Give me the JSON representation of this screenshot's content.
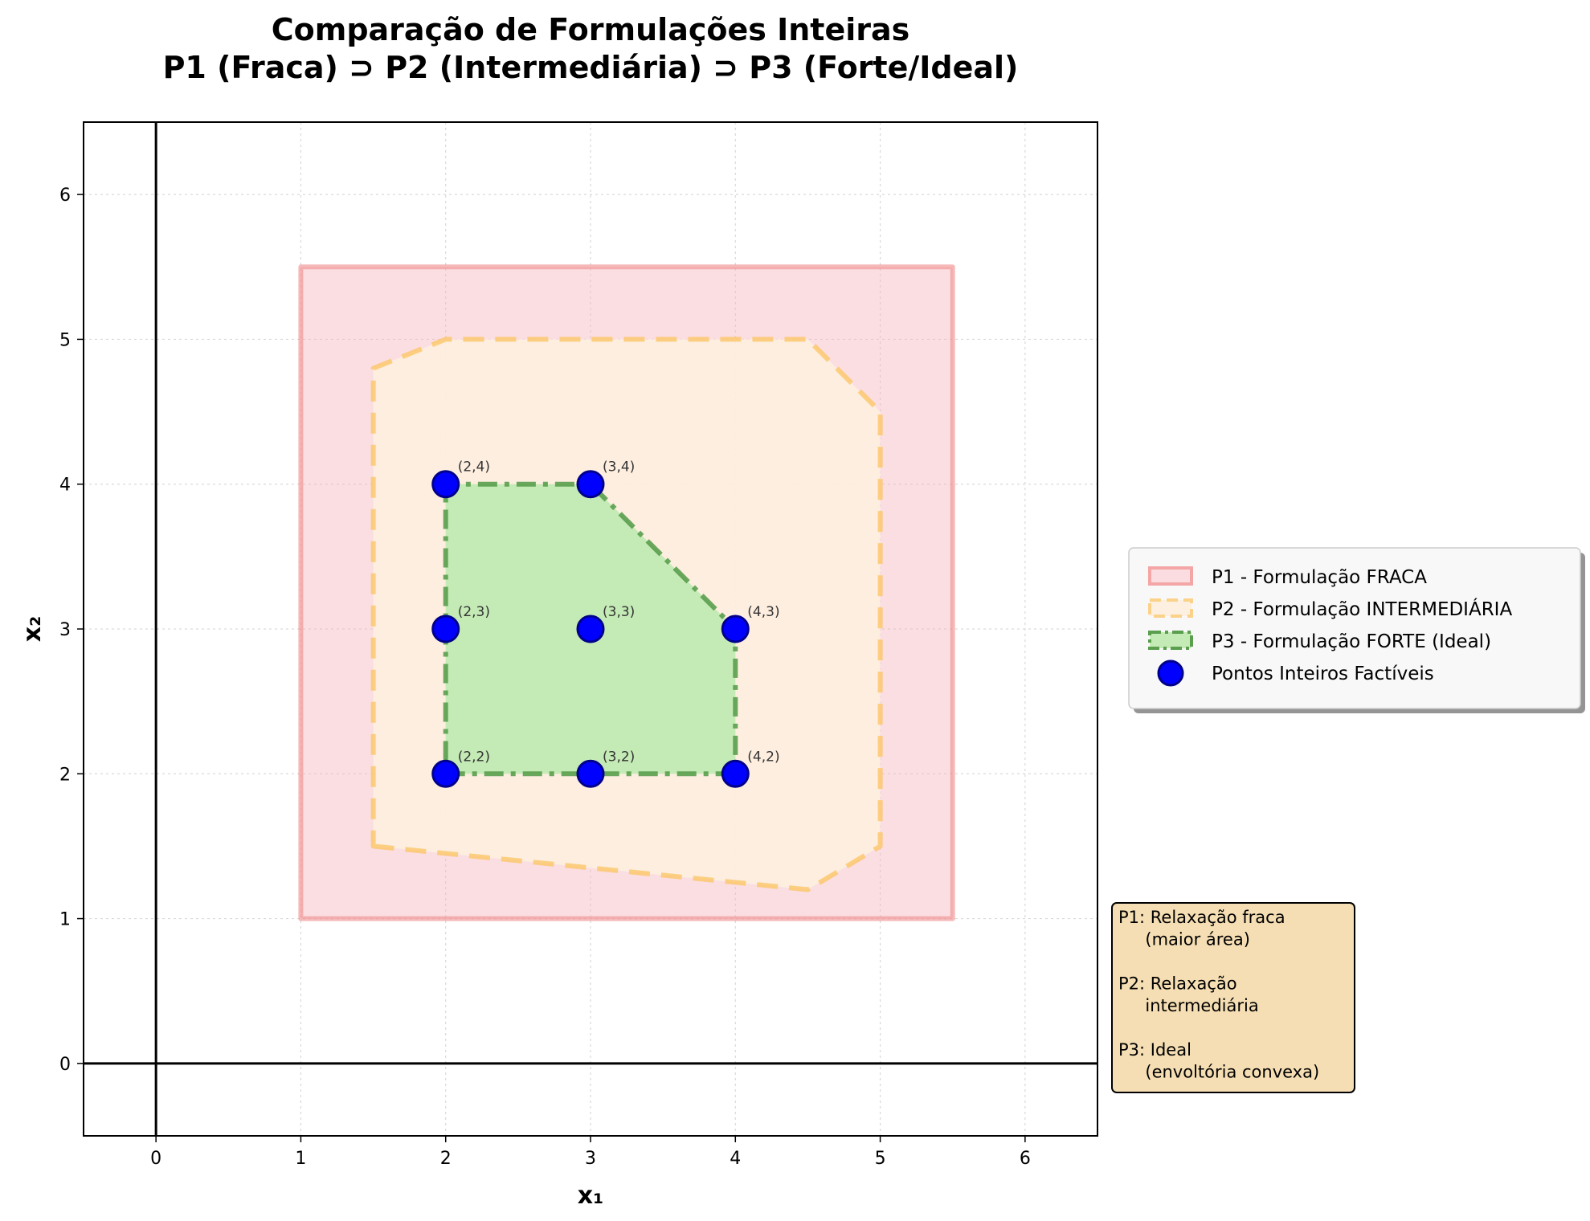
{
  "chart_data": {
    "type": "scatter",
    "title": [
      "Comparação de Formulações Inteiras",
      "P1 (Fraca) ⊃ P2 (Intermediária) ⊃ P3 (Forte/Ideal)"
    ],
    "xlabel": "x₁",
    "ylabel": "x₂",
    "xlim": [
      -0.5,
      6.5
    ],
    "ylim": [
      -0.5,
      6.5
    ],
    "xticks": [
      0,
      1,
      2,
      3,
      4,
      5,
      6
    ],
    "yticks": [
      0,
      1,
      2,
      3,
      4,
      5,
      6
    ],
    "grid": true,
    "legend_position": "right",
    "regions": [
      {
        "name": "P1 - Formulação FRACA",
        "polygon": [
          [
            1,
            1
          ],
          [
            5.5,
            1
          ],
          [
            5.5,
            5.5
          ],
          [
            1,
            5.5
          ]
        ],
        "fill": "#f4b6be",
        "stroke": "#f08a8a",
        "style": "solid"
      },
      {
        "name": "P2 - Formulação INTERMEDIÁRIA",
        "polygon": [
          [
            1.5,
            1.5
          ],
          [
            4.5,
            1.2
          ],
          [
            5,
            1.5
          ],
          [
            5,
            4.5
          ],
          [
            4.5,
            5
          ],
          [
            2,
            5
          ],
          [
            1.5,
            4.8
          ]
        ],
        "fill": "#fdf0e0",
        "stroke": "#fbc86e",
        "style": "dashed"
      },
      {
        "name": "P3 - Formulação FORTE (Ideal)",
        "polygon": [
          [
            2,
            2
          ],
          [
            4,
            2
          ],
          [
            4,
            3
          ],
          [
            3,
            4
          ],
          [
            2,
            4
          ]
        ],
        "fill": "#c4eab5",
        "stroke": "#5a9e4e",
        "style": "dashdot"
      }
    ],
    "points": {
      "name": "Pontos Inteiros Factíveis",
      "color": "#0000ff",
      "edge_color": "#00008b",
      "items": [
        {
          "x": 2,
          "y": 2,
          "label": "(2,2)"
        },
        {
          "x": 3,
          "y": 2,
          "label": "(3,2)"
        },
        {
          "x": 4,
          "y": 2,
          "label": "(4,2)"
        },
        {
          "x": 2,
          "y": 3,
          "label": "(2,3)"
        },
        {
          "x": 3,
          "y": 3,
          "label": "(3,3)"
        },
        {
          "x": 4,
          "y": 3,
          "label": "(4,3)"
        },
        {
          "x": 2,
          "y": 4,
          "label": "(2,4)"
        },
        {
          "x": 3,
          "y": 4,
          "label": "(3,4)"
        }
      ]
    },
    "annotation_box": {
      "lines": [
        "P1: Relaxação fraca",
        "     (maior área)",
        "",
        "P2: Relaxação",
        "     intermediária",
        "",
        "P3: Ideal",
        "     (envoltória convexa)"
      ],
      "fill": "#f5deb3"
    }
  }
}
